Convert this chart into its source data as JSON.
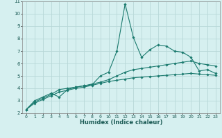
{
  "xlabel": "Humidex (Indice chaleur)",
  "bg_color": "#d6f0f0",
  "grid_color": "#b8d8d8",
  "line_color": "#1a7a6e",
  "xlim": [
    -0.5,
    23.5
  ],
  "ylim": [
    2,
    11
  ],
  "xticks": [
    0,
    1,
    2,
    3,
    4,
    5,
    6,
    7,
    8,
    9,
    10,
    11,
    12,
    13,
    14,
    15,
    16,
    17,
    18,
    19,
    20,
    21,
    22,
    23
  ],
  "yticks": [
    2,
    3,
    4,
    5,
    6,
    7,
    8,
    9,
    10,
    11
  ],
  "series": [
    {
      "x": [
        0,
        1,
        2,
        3,
        4,
        5,
        6,
        7,
        8,
        9,
        10,
        11,
        12,
        13,
        14,
        15,
        16,
        17,
        18,
        19,
        20,
        21,
        22,
        23
      ],
      "y": [
        2.3,
        3.0,
        3.3,
        3.6,
        3.3,
        3.9,
        4.1,
        4.2,
        4.3,
        5.0,
        5.3,
        7.0,
        10.8,
        8.1,
        6.5,
        7.1,
        7.5,
        7.4,
        7.0,
        6.9,
        6.5,
        5.4,
        5.5,
        5.2
      ]
    },
    {
      "x": [
        0,
        1,
        2,
        3,
        4,
        5,
        6,
        7,
        8,
        9,
        10,
        11,
        12,
        13,
        14,
        15,
        16,
        17,
        18,
        19,
        20,
        21,
        22,
        23
      ],
      "y": [
        2.3,
        2.9,
        3.2,
        3.5,
        3.9,
        4.0,
        4.1,
        4.2,
        4.35,
        4.5,
        4.7,
        5.0,
        5.3,
        5.5,
        5.6,
        5.7,
        5.8,
        5.9,
        6.0,
        6.1,
        6.2,
        6.0,
        5.9,
        5.8
      ]
    },
    {
      "x": [
        0,
        1,
        2,
        3,
        4,
        5,
        6,
        7,
        8,
        9,
        10,
        11,
        12,
        13,
        14,
        15,
        16,
        17,
        18,
        19,
        20,
        21,
        22,
        23
      ],
      "y": [
        2.3,
        2.8,
        3.1,
        3.4,
        3.7,
        3.85,
        4.0,
        4.1,
        4.25,
        4.4,
        4.55,
        4.65,
        4.75,
        4.85,
        4.9,
        4.95,
        5.0,
        5.05,
        5.1,
        5.15,
        5.2,
        5.15,
        5.1,
        5.05
      ]
    }
  ]
}
